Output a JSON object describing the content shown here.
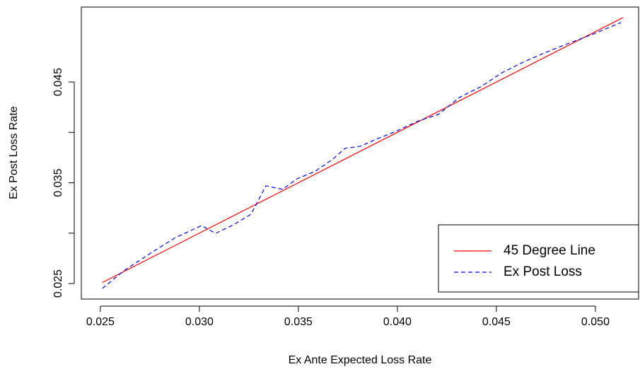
{
  "chart_data": {
    "type": "line",
    "xlabel": "Ex Ante Expected Loss Rate",
    "ylabel": "Ex Post Loss Rate",
    "xlim": [
      0.02404,
      0.05218
    ],
    "ylim": [
      0.02346,
      0.05244
    ],
    "xticks": [
      0.025,
      {
        "value": 0.03,
        "label": "0.030"
      },
      0.035,
      {
        "value": 0.04,
        "label": "0.040"
      },
      0.045,
      {
        "value": 0.05,
        "label": "0.050"
      }
    ],
    "yticks": [
      0.025,
      {
        "value": 0.03,
        "label": null
      },
      0.035,
      {
        "value": 0.04,
        "label": null
      },
      0.045
    ],
    "legend": "bottomright",
    "series": [
      {
        "name": "45 Degree Line",
        "color": "#ff0000",
        "dash": "solid",
        "x": [
          0.0251,
          0.0514
        ],
        "values": [
          0.0251,
          0.0514
        ]
      },
      {
        "name": "Ex Post Loss",
        "color": "#0000ff",
        "dash": "dashed",
        "x": [
          0.0251,
          0.02618,
          0.02743,
          0.02879,
          0.03011,
          0.03082,
          0.03171,
          0.03261,
          0.03336,
          0.03421,
          0.03493,
          0.03582,
          0.03671,
          0.03736,
          0.03814,
          0.03886,
          0.03993,
          0.041,
          0.04207,
          0.04314,
          0.04421,
          0.04529,
          0.04636,
          0.04743,
          0.0485,
          0.04993,
          0.05129
        ],
        "values": [
          0.02451,
          0.02626,
          0.02788,
          0.02956,
          0.03075,
          0.02998,
          0.03082,
          0.03188,
          0.0347,
          0.03435,
          0.0354,
          0.03611,
          0.0373,
          0.03842,
          0.03863,
          0.03926,
          0.04011,
          0.04109,
          0.04179,
          0.04348,
          0.04453,
          0.04593,
          0.04698,
          0.04789,
          0.04873,
          0.04979,
          0.05091
        ]
      }
    ]
  }
}
